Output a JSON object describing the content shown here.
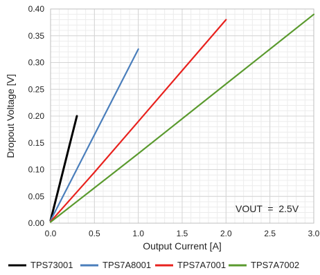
{
  "chart_data": {
    "type": "line",
    "xlabel": "Output Current [A]",
    "ylabel": "Dropout Voltage [V]",
    "xlim": [
      0,
      3.0
    ],
    "ylim": [
      0,
      0.4
    ],
    "x_ticks": [
      0,
      0.5,
      1.0,
      1.5,
      2.0,
      2.5,
      3.0
    ],
    "x_tick_labels": [
      "0.0",
      "0.5",
      "1.0",
      "1.5",
      "2.0",
      "2.5",
      "3.0"
    ],
    "y_ticks": [
      0,
      0.05,
      0.1,
      0.15,
      0.2,
      0.25,
      0.3,
      0.35,
      0.4
    ],
    "y_tick_labels": [
      "0.00",
      "0.05",
      "0.10",
      "0.15",
      "0.20",
      "0.25",
      "0.30",
      "0.35",
      "0.40"
    ],
    "grid": true,
    "legend_position": "bottom",
    "annotation": "VOUT  =  2.5V",
    "series": [
      {
        "name": "TPS73001",
        "color": "#000000",
        "x": [
          0,
          0.1,
          0.2,
          0.3
        ],
        "y": [
          0.005,
          0.07,
          0.135,
          0.2
        ]
      },
      {
        "name": "TPS7A8001",
        "color": "#4a7ebb",
        "x": [
          0,
          0.25,
          0.5,
          0.75,
          1.0
        ],
        "y": [
          0.005,
          0.085,
          0.165,
          0.245,
          0.325
        ]
      },
      {
        "name": "TPS7A7001",
        "color": "#e8211d",
        "x": [
          0,
          0.5,
          1.0,
          1.5,
          2.0
        ],
        "y": [
          0.003,
          0.095,
          0.19,
          0.285,
          0.38
        ]
      },
      {
        "name": "TPS7A7002",
        "color": "#5a9a2e",
        "x": [
          0,
          0.5,
          1.0,
          1.5,
          2.0,
          2.5,
          3.0
        ],
        "y": [
          0.002,
          0.066,
          0.13,
          0.195,
          0.26,
          0.325,
          0.39
        ]
      }
    ]
  }
}
